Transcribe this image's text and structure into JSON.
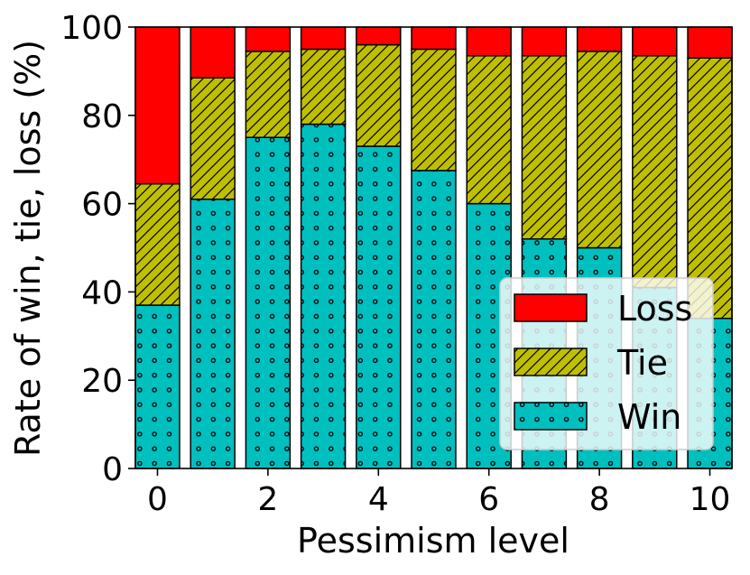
{
  "chart_data": {
    "type": "bar",
    "stacked": true,
    "title": "",
    "xlabel": "Pessimism level",
    "ylabel": "Rate of win, tie, loss (%)",
    "x": [
      0,
      1,
      2,
      3,
      4,
      5,
      6,
      7,
      8,
      9,
      10
    ],
    "xticks": [
      "0",
      "2",
      "4",
      "6",
      "8",
      "10"
    ],
    "yticks": [
      "0",
      "20",
      "40",
      "60",
      "80",
      "100"
    ],
    "ylim": [
      0,
      100
    ],
    "xlim": [
      -0.4,
      10.4
    ],
    "grid": false,
    "legend_position": "lower-right",
    "series": [
      {
        "name": "Win",
        "color": "#00bfbf",
        "hatch": "dots",
        "values": [
          37,
          61,
          75,
          78,
          73,
          67.5,
          60,
          52,
          50,
          41,
          34
        ]
      },
      {
        "name": "Tie",
        "color": "#bfbf00",
        "hatch": "slash",
        "values": [
          27.5,
          27.5,
          19.5,
          17,
          23,
          27.5,
          33.5,
          41.5,
          44.5,
          52.5,
          59
        ]
      },
      {
        "name": "Loss",
        "color": "#ff0000",
        "hatch": "none",
        "values": [
          35.5,
          11.5,
          5.5,
          5,
          4,
          5,
          6.5,
          6.5,
          5.5,
          6.5,
          7
        ]
      }
    ],
    "legend": [
      "Loss",
      "Tie",
      "Win"
    ]
  }
}
